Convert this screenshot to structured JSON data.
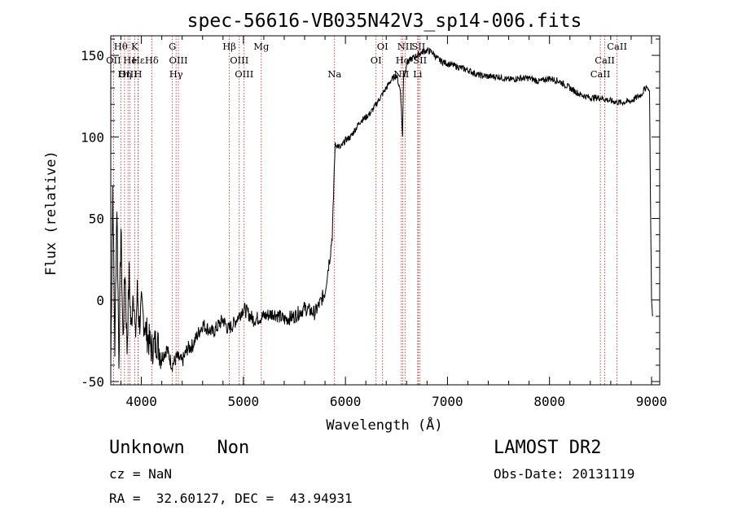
{
  "chart_data": {
    "type": "line",
    "title": "spec-56616-VB035N42V3_sp14-006.fits",
    "xlabel": "Wavelength (Å)",
    "ylabel": "Flux (relative)",
    "xlim": [
      3700,
      9080
    ],
    "ylim": [
      -52,
      162
    ],
    "x_ticks": [
      4000,
      5000,
      6000,
      7000,
      8000,
      9000
    ],
    "y_ticks": [
      -50,
      0,
      50,
      100,
      150
    ],
    "grid": false,
    "series": [
      {
        "color": "#000000",
        "x": [
          3700,
          3720,
          3740,
          3760,
          3780,
          3800,
          3820,
          3840,
          3860,
          3880,
          3900,
          3920,
          3940,
          3960,
          3980,
          4000,
          4050,
          4100,
          4150,
          4200,
          4250,
          4300,
          4350,
          4400,
          4450,
          4500,
          4600,
          4700,
          4800,
          4850,
          4900,
          5000,
          5100,
          5200,
          5300,
          5400,
          5500,
          5600,
          5700,
          5750,
          5800,
          5820,
          5850,
          5870,
          5880,
          5890,
          5895,
          5900,
          5920,
          5950,
          6000,
          6050,
          6100,
          6150,
          6200,
          6250,
          6300,
          6350,
          6400,
          6450,
          6500,
          6540,
          6560,
          6570,
          6580,
          6600,
          6650,
          6700,
          6750,
          6800,
          6850,
          6900,
          6950,
          7000,
          7100,
          7200,
          7300,
          7400,
          7500,
          7600,
          7700,
          7800,
          7900,
          8000,
          8100,
          8200,
          8300,
          8400,
          8500,
          8600,
          8700,
          8800,
          8900,
          8950,
          8980,
          8990,
          9000,
          9010
        ],
        "values": [
          -40,
          70,
          -30,
          60,
          -35,
          45,
          -25,
          20,
          -30,
          15,
          -20,
          10,
          -25,
          5,
          -15,
          -5,
          -20,
          -30,
          -25,
          -35,
          -30,
          -40,
          -35,
          -38,
          -30,
          -28,
          -15,
          -20,
          -12,
          -18,
          -15,
          -5,
          -12,
          -10,
          -8,
          -12,
          -10,
          -5,
          -8,
          -2,
          5,
          15,
          28,
          40,
          55,
          80,
          90,
          95,
          95,
          93,
          98,
          100,
          105,
          110,
          112,
          115,
          120,
          125,
          130,
          135,
          138,
          128,
          100,
          140,
          138,
          145,
          148,
          150,
          152,
          153,
          152,
          148,
          146,
          145,
          143,
          141,
          138,
          137,
          137,
          135,
          136,
          136,
          134,
          136,
          134,
          130,
          126,
          124,
          124,
          122,
          121,
          122,
          126,
          131,
          128,
          60,
          0,
          -10
        ]
      }
    ],
    "line_markers": [
      {
        "label": "Hθ",
        "x": 3798,
        "row": 0
      },
      {
        "label": "K",
        "x": 3934,
        "row": 0
      },
      {
        "label": "G",
        "x": 4304,
        "row": 0
      },
      {
        "label": "Hβ",
        "x": 4862,
        "row": 0
      },
      {
        "label": "Mg",
        "x": 5175,
        "row": 0
      },
      {
        "label": "OI",
        "x": 6364,
        "row": 0
      },
      {
        "label": "NII",
        "x": 6584,
        "row": 0
      },
      {
        "label": "SII",
        "x": 6716,
        "row": 0
      },
      {
        "label": "CaII",
        "x": 8662,
        "row": 0
      },
      {
        "label": "OII",
        "x": 3727,
        "row": 1
      },
      {
        "label": "He",
        "x": 3889,
        "row": 1
      },
      {
        "label": "Hε",
        "x": 3970,
        "row": 1
      },
      {
        "label": "Hδ",
        "x": 4102,
        "row": 1
      },
      {
        "label": "OIII",
        "x": 4363,
        "row": 1
      },
      {
        "label": "OIII",
        "x": 4959,
        "row": 1
      },
      {
        "label": "OI",
        "x": 6300,
        "row": 1
      },
      {
        "label": "Hα",
        "x": 6563,
        "row": 1
      },
      {
        "label": "SII",
        "x": 6731,
        "row": 1
      },
      {
        "label": "CaII",
        "x": 8542,
        "row": 1
      },
      {
        "label": "OIII",
        "x": 3869,
        "row": 2
      },
      {
        "label": "Hη",
        "x": 3835,
        "row": 2
      },
      {
        "label": "H",
        "x": 3968,
        "row": 2
      },
      {
        "label": "Hγ",
        "x": 4340,
        "row": 2
      },
      {
        "label": "OIII",
        "x": 5007,
        "row": 2
      },
      {
        "label": "Na",
        "x": 5893,
        "row": 2
      },
      {
        "label": "NII",
        "x": 6548,
        "row": 2
      },
      {
        "label": "Li",
        "x": 6708,
        "row": 2
      },
      {
        "label": "CaII",
        "x": 8498,
        "row": 2
      }
    ]
  },
  "footer": {
    "class_text": "Unknown   Non",
    "survey": "LAMOST DR2",
    "cz": "cz = NaN",
    "obs_date": "Obs-Date: 20131119",
    "coords": "RA =  32.60127, DEC =  43.94931"
  }
}
